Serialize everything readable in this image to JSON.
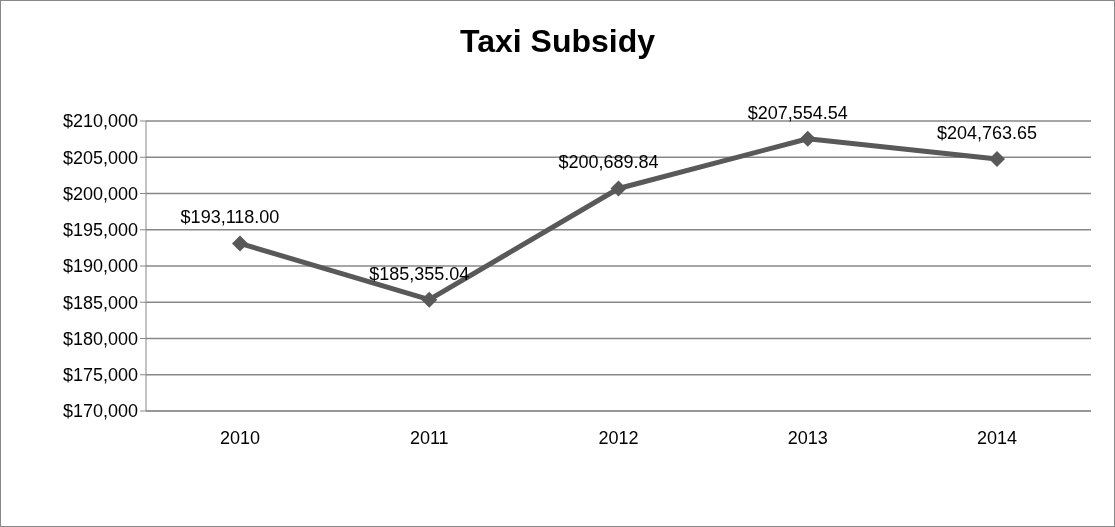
{
  "chart_data": {
    "type": "line",
    "title": "Taxi Subsidy",
    "categories": [
      "2010",
      "2011",
      "2012",
      "2013",
      "2014"
    ],
    "series": [
      {
        "color": "#595959",
        "values": [
          193118,
          185355.04,
          200689.84,
          207554.54,
          204763.65
        ],
        "value_labels": [
          "$193,118.00",
          "$185,355.04",
          "$200,689.84",
          "$207,554.54",
          "$204,763.65"
        ]
      }
    ],
    "ylim": [
      170000,
      210000
    ],
    "yticks": [
      {
        "value": 170000,
        "label": "$170,000"
      },
      {
        "value": 175000,
        "label": "$175,000"
      },
      {
        "value": 180000,
        "label": "$180,000"
      },
      {
        "value": 185000,
        "label": "$185,000"
      },
      {
        "value": 190000,
        "label": "$190,000"
      },
      {
        "value": 195000,
        "label": "$195,000"
      },
      {
        "value": 200000,
        "label": "$200,000"
      },
      {
        "value": 205000,
        "label": "$205,000"
      },
      {
        "value": 210000,
        "label": "$210,000"
      }
    ],
    "grid": "y",
    "marker": "diamond",
    "line_style": "solid"
  }
}
